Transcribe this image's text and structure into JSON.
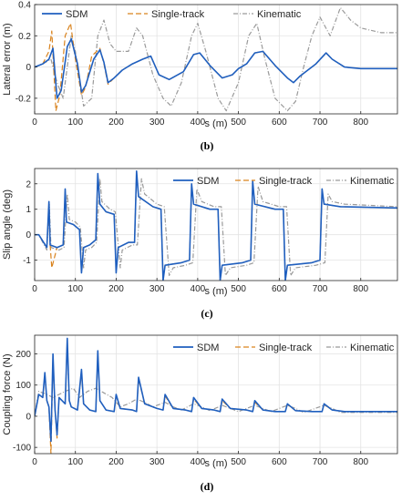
{
  "colors": {
    "SDM": "#1f5fbf",
    "Single-track": "#d9831e",
    "Kinematic": "#9a9a9a",
    "grid": "#e3e3e3",
    "axis": "#262626"
  },
  "chart_data": [
    {
      "type": "line",
      "caption": "(b)",
      "xlabel": "s (m)",
      "ylabel": "Lateral error (m)",
      "xlim": [
        0,
        890
      ],
      "ylim": [
        -0.3,
        0.4
      ],
      "xticks": [
        0,
        100,
        200,
        300,
        400,
        500,
        600,
        700,
        800
      ],
      "yticks": [
        -0.2,
        0,
        0.2,
        0.4
      ],
      "ytick_labels": [
        "-0.2",
        "0",
        "0.2",
        "0.4"
      ],
      "show_xtick_labels": true,
      "grid": true,
      "legend_placement": "top",
      "series": [
        {
          "name": "SDM",
          "style": "solid",
          "x": [
            0,
            20,
            35,
            45,
            55,
            65,
            80,
            90,
            105,
            115,
            125,
            145,
            160,
            170,
            180,
            195,
            215,
            240,
            265,
            285,
            305,
            330,
            365,
            390,
            405,
            430,
            460,
            485,
            500,
            520,
            540,
            560,
            590,
            620,
            635,
            650,
            690,
            715,
            730,
            760,
            800,
            890
          ],
          "y": [
            0,
            0.02,
            0.05,
            0.12,
            -0.2,
            -0.15,
            0.13,
            0.18,
            0.02,
            -0.16,
            -0.12,
            0.05,
            0.11,
            0.03,
            -0.1,
            -0.07,
            -0.02,
            0.02,
            0.05,
            0.07,
            -0.05,
            -0.08,
            -0.03,
            0.08,
            0.09,
            0.01,
            -0.07,
            -0.05,
            -0.01,
            0.02,
            0.09,
            0.1,
            0.01,
            -0.07,
            -0.1,
            -0.06,
            0.02,
            0.09,
            0.05,
            0.0,
            -0.01,
            -0.01
          ]
        },
        {
          "name": "Single-track",
          "style": "dashed",
          "x": [
            0,
            20,
            35,
            42,
            52,
            62,
            75,
            88,
            100,
            115,
            125,
            140,
            160,
            170,
            180,
            195,
            215,
            240,
            265,
            285,
            305,
            330,
            365,
            390,
            405,
            430,
            460,
            485,
            500,
            520,
            540,
            560,
            590,
            620,
            635,
            650,
            690,
            715,
            730,
            760,
            800,
            890
          ],
          "y": [
            0,
            0.02,
            0.1,
            0.23,
            -0.28,
            -0.18,
            0.2,
            0.28,
            0.05,
            -0.18,
            -0.13,
            0.07,
            0.12,
            0.02,
            -0.11,
            -0.07,
            -0.02,
            0.02,
            0.05,
            0.07,
            -0.05,
            -0.08,
            -0.03,
            0.08,
            0.09,
            0.01,
            -0.07,
            -0.05,
            -0.01,
            0.02,
            0.09,
            0.1,
            0.01,
            -0.07,
            -0.1,
            -0.06,
            0.02,
            0.09,
            0.05,
            0.0,
            -0.01,
            -0.01
          ]
        },
        {
          "name": "Kinematic",
          "style": "dashdot",
          "x": [
            0,
            20,
            40,
            55,
            70,
            90,
            100,
            120,
            140,
            155,
            170,
            185,
            200,
            230,
            250,
            265,
            290,
            315,
            335,
            360,
            385,
            400,
            420,
            450,
            470,
            500,
            525,
            545,
            565,
            590,
            620,
            640,
            660,
            680,
            700,
            725,
            750,
            775,
            800,
            850,
            890
          ],
          "y": [
            0,
            0.02,
            0.05,
            -0.1,
            -0.2,
            0.2,
            0.1,
            -0.25,
            -0.2,
            0.2,
            0.3,
            0.15,
            0.1,
            0.1,
            0.25,
            0.2,
            -0.05,
            -0.2,
            -0.25,
            -0.1,
            0.2,
            0.28,
            0.1,
            -0.2,
            -0.28,
            -0.1,
            0.2,
            0.28,
            0.05,
            -0.2,
            -0.28,
            -0.22,
            0.0,
            0.2,
            0.32,
            0.2,
            0.38,
            0.3,
            0.25,
            0.22,
            0.22
          ]
        }
      ]
    },
    {
      "type": "line",
      "caption": "(c)",
      "xlabel": "s (m)",
      "ylabel": "Slip angle (deg)",
      "xlim": [
        0,
        890
      ],
      "ylim": [
        -1.8,
        2.6
      ],
      "xticks": [
        0,
        100,
        200,
        300,
        400,
        500,
        600,
        700,
        800
      ],
      "yticks": [
        -1,
        0,
        1,
        2
      ],
      "ytick_labels": [
        "-1",
        "0",
        "1",
        "2"
      ],
      "show_xtick_labels": true,
      "grid": true,
      "legend_placement": "top",
      "series": [
        {
          "name": "SDM",
          "style": "solid",
          "x": [
            0,
            10,
            30,
            35,
            38,
            55,
            70,
            75,
            78,
            95,
            110,
            115,
            120,
            135,
            150,
            155,
            160,
            175,
            195,
            200,
            205,
            230,
            245,
            250,
            255,
            290,
            310,
            315,
            320,
            360,
            380,
            385,
            390,
            430,
            450,
            455,
            460,
            510,
            530,
            535,
            540,
            590,
            610,
            615,
            620,
            680,
            700,
            705,
            710,
            750,
            890
          ],
          "y": [
            0,
            0,
            -0.5,
            1.3,
            -0.4,
            -0.5,
            -0.4,
            1.8,
            0.5,
            0.4,
            0.2,
            -1.5,
            -0.5,
            -0.4,
            -0.2,
            2.4,
            1.2,
            0.9,
            0.8,
            -1.5,
            -0.5,
            -0.3,
            -0.3,
            2.5,
            1.5,
            1.1,
            1.0,
            -1.8,
            -1.2,
            -1.1,
            -1.0,
            2.0,
            1.2,
            1.0,
            1.0,
            -1.8,
            -1.2,
            -1.1,
            -1.0,
            2.1,
            1.2,
            1.0,
            1.0,
            -1.8,
            -1.2,
            -1.1,
            -1.0,
            1.8,
            1.2,
            1.1,
            1.05
          ]
        },
        {
          "name": "Single-track",
          "style": "dashed",
          "x": [
            0,
            10,
            30,
            35,
            38,
            42,
            55,
            70,
            75,
            78,
            95,
            110,
            115,
            120,
            135,
            150,
            155,
            160,
            175,
            195,
            200,
            205,
            230,
            245,
            250,
            255,
            290,
            310,
            315,
            320,
            360,
            380,
            385,
            390,
            430,
            450,
            455,
            460,
            510,
            530,
            535,
            540,
            590,
            610,
            615,
            620,
            680,
            700,
            705,
            710,
            750,
            890
          ],
          "y": [
            0,
            0,
            -0.5,
            1.1,
            -0.4,
            -1.3,
            -0.5,
            -0.4,
            1.7,
            0.5,
            0.4,
            0.2,
            -1.4,
            -0.5,
            -0.4,
            -0.2,
            2.3,
            1.2,
            0.9,
            0.8,
            -1.4,
            -0.5,
            -0.3,
            -0.3,
            2.4,
            1.5,
            1.1,
            1.0,
            -1.7,
            -1.2,
            -1.1,
            -1.0,
            1.9,
            1.2,
            1.0,
            1.0,
            -1.7,
            -1.2,
            -1.1,
            -1.0,
            2.0,
            1.2,
            1.0,
            1.0,
            -1.7,
            -1.2,
            -1.1,
            -1.0,
            1.7,
            1.2,
            1.1,
            1.05
          ]
        },
        {
          "name": "Kinematic",
          "style": "dashdot",
          "x": [
            0,
            10,
            30,
            36,
            40,
            60,
            72,
            80,
            85,
            100,
            112,
            120,
            125,
            140,
            152,
            160,
            165,
            185,
            198,
            210,
            215,
            240,
            252,
            262,
            270,
            300,
            318,
            330,
            340,
            370,
            388,
            398,
            410,
            440,
            458,
            468,
            480,
            520,
            538,
            548,
            560,
            600,
            618,
            628,
            640,
            690,
            712,
            720,
            730,
            760,
            890
          ],
          "y": [
            0,
            0,
            -0.6,
            1.2,
            -0.5,
            -0.6,
            -0.5,
            1.6,
            0.6,
            0.5,
            0.3,
            -1.3,
            -0.6,
            -0.5,
            -0.3,
            2.2,
            1.3,
            1.0,
            0.9,
            -1.3,
            -0.6,
            -0.4,
            -0.4,
            2.2,
            1.6,
            1.2,
            1.1,
            -1.6,
            -1.3,
            -1.2,
            -1.1,
            1.8,
            1.3,
            1.1,
            1.1,
            -1.6,
            -1.3,
            -1.2,
            -1.1,
            1.9,
            1.3,
            1.1,
            1.1,
            -1.6,
            -1.3,
            -1.2,
            -1.1,
            1.6,
            1.3,
            1.2,
            1.1
          ]
        }
      ]
    },
    {
      "type": "line",
      "caption": "(d)",
      "xlabel": "s (m)",
      "ylabel": "Coupling force (N)",
      "xlim": [
        0,
        890
      ],
      "ylim": [
        -120,
        260
      ],
      "xticks": [
        0,
        100,
        200,
        300,
        400,
        500,
        600,
        700,
        800
      ],
      "yticks": [
        -100,
        0,
        100,
        200
      ],
      "ytick_labels": [
        "-100",
        "0",
        "100",
        "200"
      ],
      "show_xtick_labels": true,
      "grid": true,
      "legend_placement": "top",
      "series": [
        {
          "name": "SDM",
          "style": "solid",
          "x": [
            0,
            10,
            20,
            25,
            30,
            35,
            40,
            45,
            50,
            55,
            60,
            75,
            80,
            85,
            90,
            105,
            115,
            120,
            135,
            150,
            155,
            160,
            175,
            195,
            200,
            210,
            240,
            250,
            255,
            270,
            300,
            315,
            320,
            340,
            370,
            385,
            390,
            410,
            440,
            455,
            460,
            480,
            520,
            535,
            540,
            560,
            590,
            615,
            620,
            640,
            680,
            705,
            710,
            730,
            760,
            890
          ],
          "y": [
            0,
            70,
            60,
            140,
            50,
            30,
            -80,
            200,
            20,
            -60,
            60,
            40,
            250,
            50,
            30,
            20,
            150,
            40,
            20,
            15,
            210,
            50,
            20,
            15,
            70,
            25,
            20,
            15,
            125,
            40,
            25,
            20,
            70,
            25,
            20,
            15,
            60,
            25,
            20,
            15,
            55,
            25,
            20,
            15,
            50,
            20,
            15,
            15,
            40,
            18,
            15,
            15,
            40,
            20,
            15,
            15
          ]
        },
        {
          "name": "Single-track",
          "style": "dashed",
          "x": [
            0,
            10,
            20,
            25,
            30,
            35,
            40,
            45,
            50,
            55,
            60,
            75,
            80,
            85,
            90,
            105,
            115,
            120,
            135,
            150,
            155,
            160,
            175,
            195,
            200,
            210,
            240,
            250,
            255,
            270,
            300,
            315,
            320,
            340,
            370,
            385,
            390,
            410,
            440,
            455,
            460,
            480,
            520,
            535,
            540,
            560,
            590,
            615,
            620,
            640,
            680,
            705,
            710,
            730,
            760,
            890
          ],
          "y": [
            0,
            70,
            60,
            130,
            50,
            30,
            -120,
            180,
            20,
            -70,
            60,
            40,
            240,
            50,
            30,
            20,
            140,
            40,
            20,
            15,
            200,
            50,
            20,
            15,
            65,
            25,
            20,
            15,
            120,
            40,
            25,
            20,
            65,
            25,
            20,
            15,
            55,
            25,
            20,
            15,
            50,
            25,
            20,
            15,
            45,
            20,
            15,
            15,
            38,
            18,
            15,
            15,
            38,
            20,
            15,
            15
          ]
        },
        {
          "name": "Kinematic",
          "style": "dashdot",
          "x": [
            0,
            10,
            20,
            30,
            45,
            60,
            75,
            95,
            110,
            130,
            150,
            170,
            190,
            210,
            230,
            250,
            270,
            290,
            320,
            340,
            360,
            390,
            410,
            430,
            460,
            480,
            500,
            540,
            560,
            580,
            620,
            640,
            660,
            710,
            730,
            750,
            800,
            890
          ],
          "y": [
            0,
            80,
            75,
            70,
            60,
            70,
            80,
            90,
            60,
            80,
            90,
            75,
            60,
            30,
            40,
            55,
            45,
            30,
            45,
            30,
            20,
            40,
            30,
            18,
            35,
            25,
            15,
            35,
            25,
            15,
            35,
            25,
            12,
            35,
            25,
            12,
            12,
            12
          ]
        }
      ]
    }
  ]
}
